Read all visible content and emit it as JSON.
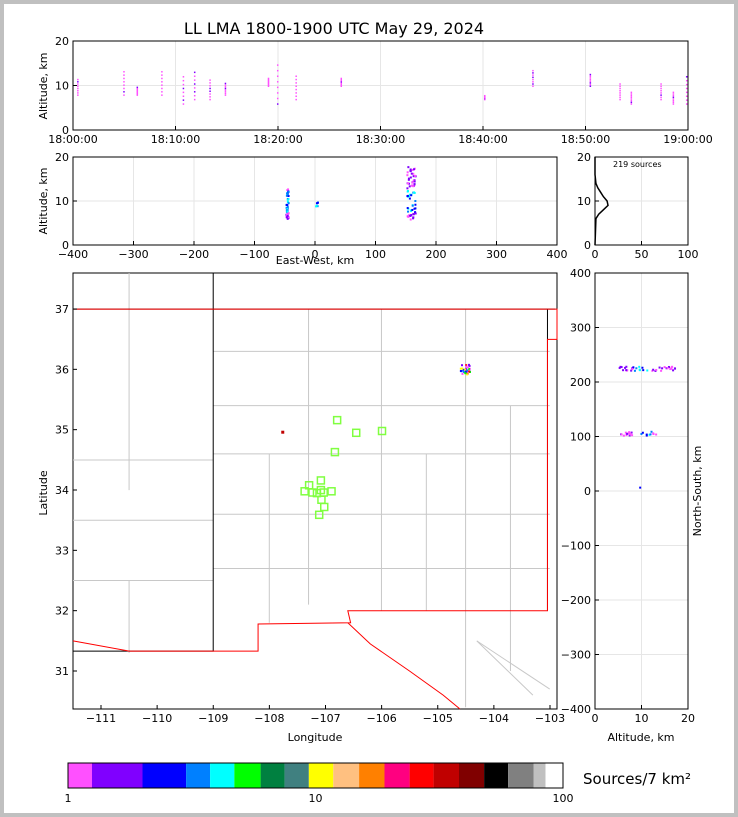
{
  "chart_data": {
    "type": "scatter",
    "title": "LL LMA 1800-1900 UTC May 29, 2024",
    "panels": {
      "time_height": {
        "ylabel": "Altitude, km",
        "ylim": [
          0,
          20
        ],
        "yticks": [
          "0",
          "10",
          "20"
        ],
        "xticks": [
          "18:00:00",
          "18:10:00",
          "18:20:00",
          "18:30:00",
          "18:40:00",
          "18:50:00",
          "19:00:00"
        ],
        "xlim_minutes": [
          0,
          60
        ],
        "grid": true,
        "columns": [
          {
            "t": 0.4,
            "alt": [
              8,
              12
            ]
          },
          {
            "t": 4.9,
            "alt": [
              8,
              14
            ]
          },
          {
            "t": 6.2,
            "alt": [
              8,
              10
            ]
          },
          {
            "t": 8.6,
            "alt": [
              8,
              14
            ]
          },
          {
            "t": 10.7,
            "alt": [
              6,
              13
            ]
          },
          {
            "t": 11.8,
            "alt": [
              7,
              14
            ]
          },
          {
            "t": 13.3,
            "alt": [
              7,
              12
            ]
          },
          {
            "t": 14.8,
            "alt": [
              8,
              11
            ]
          },
          {
            "t": 19.0,
            "alt": [
              10,
              12
            ]
          },
          {
            "t": 19.9,
            "alt": [
              6,
              16
            ]
          },
          {
            "t": 21.7,
            "alt": [
              7,
              13
            ]
          },
          {
            "t": 26.1,
            "alt": [
              10,
              12
            ]
          },
          {
            "t": 40.1,
            "alt": [
              7,
              8
            ]
          },
          {
            "t": 44.8,
            "alt": [
              10,
              14
            ]
          },
          {
            "t": 50.4,
            "alt": [
              10,
              13
            ]
          },
          {
            "t": 53.3,
            "alt": [
              7,
              11
            ]
          },
          {
            "t": 54.4,
            "alt": [
              6,
              9
            ]
          },
          {
            "t": 57.3,
            "alt": [
              7,
              11
            ]
          },
          {
            "t": 58.5,
            "alt": [
              6,
              9
            ]
          },
          {
            "t": 59.8,
            "alt": [
              6,
              13
            ]
          }
        ]
      },
      "ew_height": {
        "xlabel": "East-West, km",
        "ylabel": "Altitude, km",
        "xlim": [
          -400,
          400
        ],
        "ylim": [
          0,
          20
        ],
        "xticks": [
          "−400",
          "−300",
          "−200",
          "−100",
          "0",
          "100",
          "200",
          "300",
          "400"
        ],
        "yticks": [
          "0",
          "10",
          "20"
        ],
        "clusters": [
          {
            "x": -47,
            "alt": [
              6,
              13
            ]
          },
          {
            "x": 2,
            "alt": [
              9,
              10
            ]
          },
          {
            "x": 158,
            "alt": [
              6,
              18
            ]
          }
        ]
      },
      "histogram": {
        "label": "219 sources",
        "xlim": [
          0,
          100
        ],
        "ylim": [
          0,
          20
        ],
        "xticks": [
          "0",
          "50",
          "100"
        ],
        "yticks": [
          "0",
          "10",
          "20"
        ],
        "profile": [
          [
            6,
            1
          ],
          [
            7,
            4
          ],
          [
            8,
            9
          ],
          [
            9,
            14
          ],
          [
            10,
            13
          ],
          [
            11,
            9
          ],
          [
            12,
            6
          ],
          [
            13,
            3
          ],
          [
            14,
            1
          ]
        ]
      },
      "map": {
        "xlabel": "Longitude",
        "ylabel": "Latitude",
        "xlim": [
          -111.5,
          -102.87
        ],
        "ylim": [
          30.37,
          37.6
        ],
        "xticks": [
          "−111",
          "−110",
          "−109",
          "−108",
          "−107",
          "−106",
          "−105",
          "−104",
          "−103"
        ],
        "yticks": [
          "31",
          "32",
          "33",
          "34",
          "35",
          "36",
          "37"
        ],
        "stations": [
          [
            -106.79,
            35.16
          ],
          [
            -106.45,
            34.95
          ],
          [
            -105.99,
            34.98
          ],
          [
            -106.83,
            34.63
          ],
          [
            -107.29,
            34.08
          ],
          [
            -107.08,
            34.16
          ],
          [
            -107.08,
            34.0
          ],
          [
            -107.37,
            33.98
          ],
          [
            -107.23,
            33.96
          ],
          [
            -107.15,
            33.95
          ],
          [
            -107.03,
            33.96
          ],
          [
            -106.89,
            33.98
          ],
          [
            -107.07,
            33.84
          ],
          [
            -107.02,
            33.72
          ],
          [
            -107.11,
            33.59
          ]
        ],
        "source_clusters": [
          {
            "lon": -104.52,
            "lat": 36.03,
            "n": 200
          },
          {
            "lon": -107.76,
            "lat": 34.96,
            "n": 4
          }
        ]
      },
      "ns_height": {
        "xlabel": "Altitude, km",
        "ylabel": "North-South, km",
        "xlim": [
          0,
          20
        ],
        "ylim": [
          -400,
          400
        ],
        "xticks": [
          "0",
          "10",
          "20"
        ],
        "yticks": [
          "−400",
          "−300",
          "−200",
          "−100",
          "0",
          "100",
          "200",
          "300",
          "400"
        ],
        "clusters": [
          {
            "y": 226,
            "alt": [
              5,
              17
            ]
          },
          {
            "y": 107,
            "alt": [
              5,
              13
            ]
          },
          {
            "y": 8,
            "alt": [
              9,
              10
            ]
          }
        ]
      }
    },
    "colorbar": {
      "label": "Sources/7 km²",
      "scale": "log",
      "range": [
        1,
        100
      ],
      "ticks": [
        "1",
        "10",
        "100"
      ],
      "colors": [
        "#ff50ff",
        "#8000ff",
        "#0000ff",
        "#0080ff",
        "#00ffff",
        "#00ff00",
        "#008040",
        "#408080",
        "#ffff00",
        "#ffc080",
        "#ff8000",
        "#ff0080",
        "#ff0000",
        "#c00000",
        "#800000",
        "#000000",
        "#808080",
        "#c0c0c0",
        "#ffffff"
      ]
    },
    "station_color": "#80ff40",
    "network_outline_color": "#ff0000"
  }
}
